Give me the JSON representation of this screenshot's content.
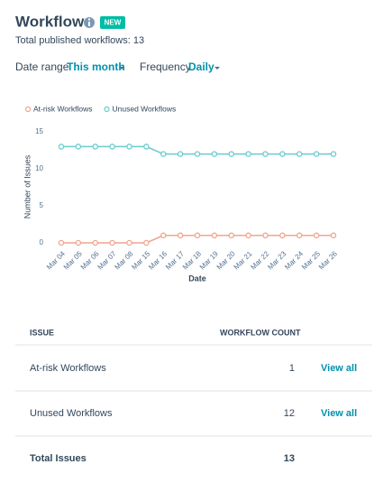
{
  "header": {
    "title": "Workflows",
    "badge": "NEW",
    "subtitle": "Total published workflows: 13"
  },
  "filters": [
    {
      "label": "Date range",
      "value": "This month"
    },
    {
      "label": "Frequency",
      "value": "Daily"
    }
  ],
  "chart_data": {
    "type": "line",
    "categories": [
      "Mar 04",
      "Mar 05",
      "Mar 06",
      "Mar 07",
      "Mar 08",
      "Mar 15",
      "Mar 16",
      "Mar 17",
      "Mar 18",
      "Mar 19",
      "Mar 20",
      "Mar 21",
      "Mar 22",
      "Mar 23",
      "Mar 24",
      "Mar 25",
      "Mar 26"
    ],
    "series": [
      {
        "name": "At-risk Workflows",
        "color": "#f2a48e",
        "values": [
          0,
          0,
          0,
          0,
          0,
          0,
          1,
          1,
          1,
          1,
          1,
          1,
          1,
          1,
          1,
          1,
          1
        ]
      },
      {
        "name": "Unused Workflows",
        "color": "#6ccbcf",
        "values": [
          13,
          13,
          13,
          13,
          13,
          13,
          12,
          12,
          12,
          12,
          12,
          12,
          12,
          12,
          12,
          12,
          12
        ]
      }
    ],
    "ylim": [
      0,
      15
    ],
    "yticks": [
      0,
      5,
      10,
      15
    ],
    "xlabel": "Date",
    "ylabel": "Number of Issues",
    "grid": false,
    "legend": "top-left"
  },
  "table": {
    "columns": [
      "ISSUE",
      "WORKFLOW COUNT"
    ],
    "rows": [
      [
        "At-risk Workflows",
        "1",
        "View all"
      ],
      [
        "Unused Workflows",
        "12",
        "View all"
      ]
    ],
    "total": [
      "Total Issues",
      "13"
    ]
  }
}
